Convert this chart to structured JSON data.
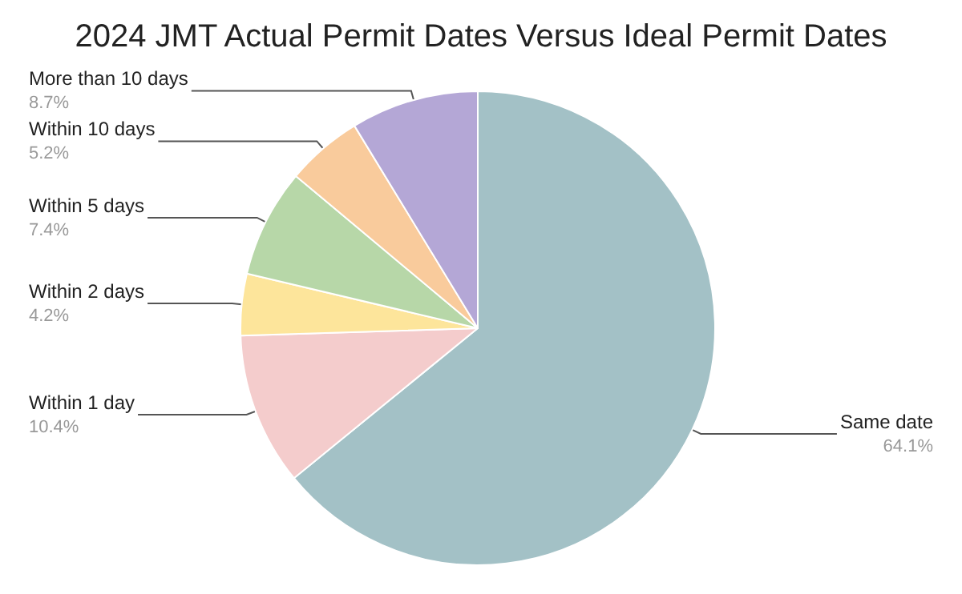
{
  "chart_data": {
    "type": "pie",
    "title": "2024 JMT Actual Permit Dates Versus Ideal Permit Dates",
    "categories": [
      "Same date",
      "Within 1 day",
      "Within 2 days",
      "Within 5 days",
      "Within 10 days",
      "More than 10 days"
    ],
    "values": [
      64.1,
      10.4,
      4.2,
      7.4,
      5.2,
      8.7
    ],
    "value_labels": [
      "64.1%",
      "10.4%",
      "4.2%",
      "7.4%",
      "5.2%",
      "8.7%"
    ],
    "colors": [
      "#a3c1c6",
      "#f4cccc",
      "#fde59b",
      "#b7d7a8",
      "#f9cb9c",
      "#b4a7d6"
    ],
    "legend": false
  }
}
